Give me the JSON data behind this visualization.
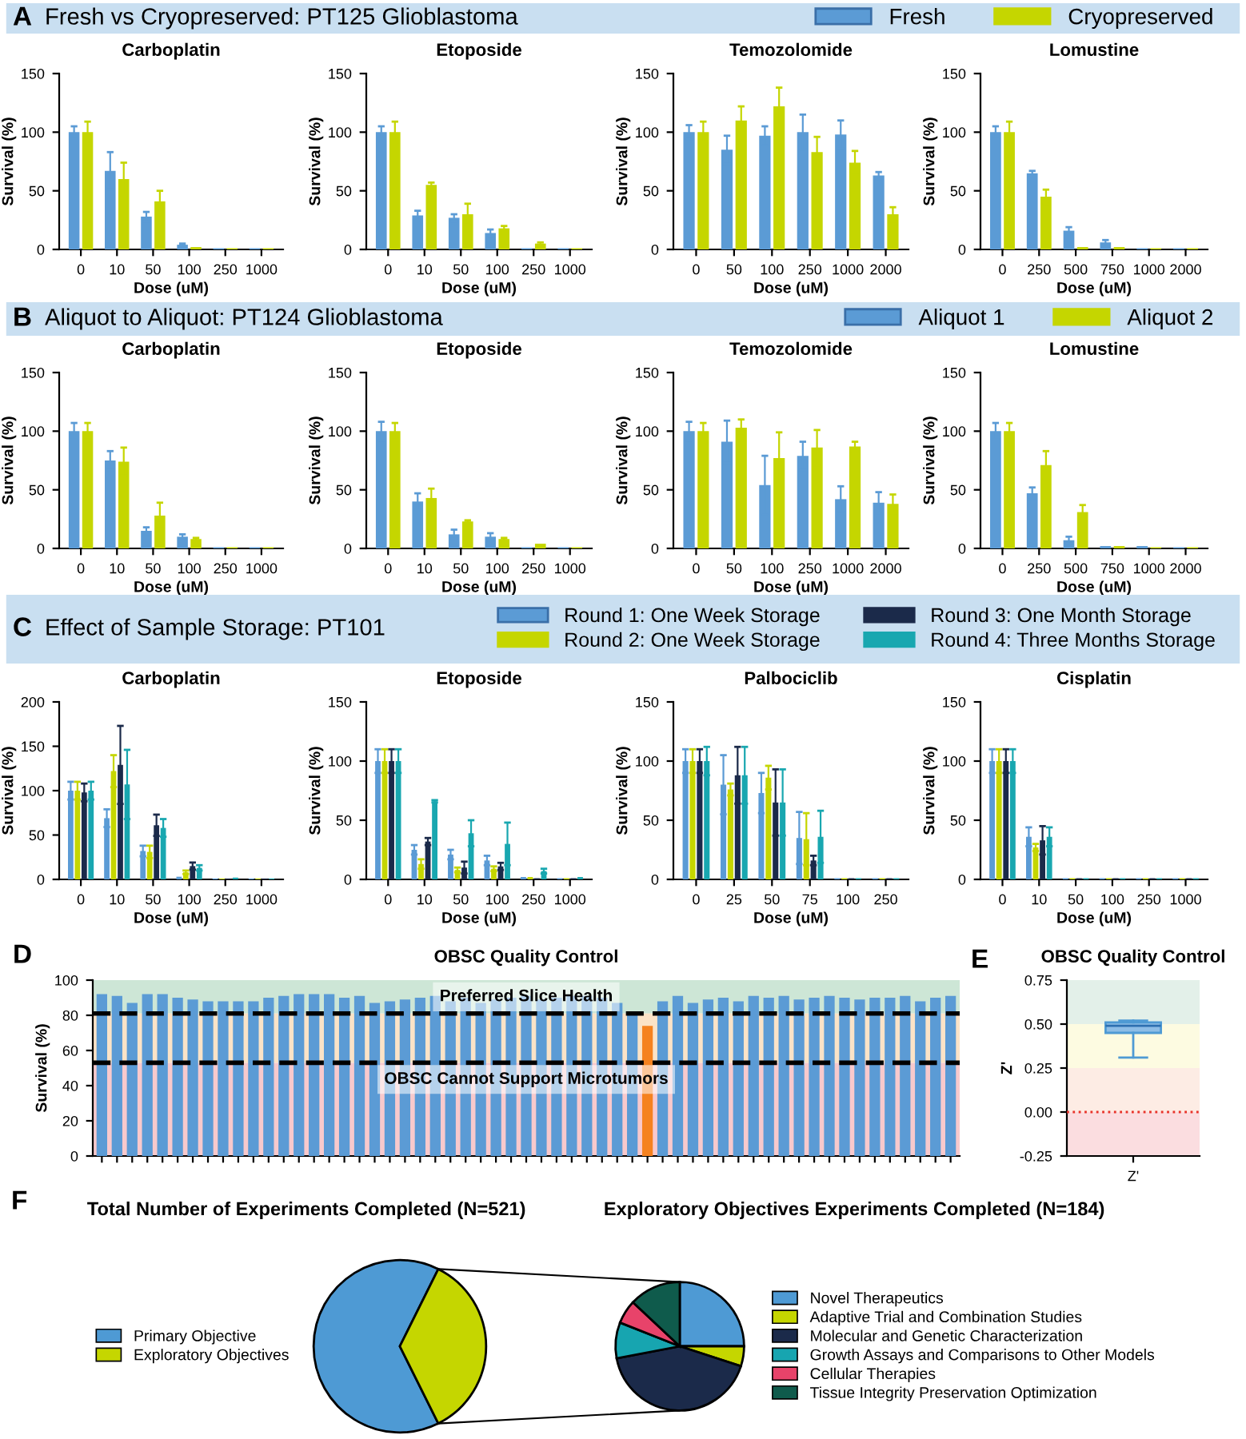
{
  "chart_data": [
    {
      "type": "bar",
      "subtitle": "Fresh vs Cryopreserved: PT125 Glioblastoma",
      "annotations": [
        "A"
      ],
      "legend": "top right",
      "title": "Carboplatin",
      "xlabel": "Dose (uM)",
      "ylabel": "Survival (%)",
      "categories": [
        "0",
        "10",
        "50",
        "100",
        "250",
        "1000"
      ],
      "ylim": [
        0,
        150
      ],
      "yticks": [
        0,
        50,
        100,
        150
      ],
      "series": [
        {
          "name": "Fresh",
          "color": "#5b9bd5",
          "values": [
            100,
            67,
            28,
            4,
            1,
            1
          ],
          "errors": [
            5,
            16,
            4,
            1,
            null,
            null
          ]
        },
        {
          "name": "Cryopreserved",
          "color": "#c5d600",
          "values": [
            100,
            60,
            41,
            2,
            1,
            1
          ],
          "errors": [
            9,
            14,
            9,
            null,
            null,
            null
          ]
        }
      ]
    },
    {
      "type": "bar",
      "title": "Etoposide",
      "xlabel": "Dose (uM)",
      "ylabel": "Survival (%)",
      "categories": [
        "0",
        "10",
        "50",
        "100",
        "250",
        "1000"
      ],
      "ylim": [
        0,
        150
      ],
      "yticks": [
        0,
        50,
        100,
        150
      ],
      "series": [
        {
          "color": "#5b9bd5",
          "values": [
            100,
            29,
            27,
            14,
            1,
            1
          ],
          "errors": [
            5,
            4,
            3,
            3,
            null,
            null
          ]
        },
        {
          "color": "#c5d600",
          "values": [
            100,
            55,
            30,
            18,
            5,
            1
          ],
          "errors": [
            9,
            2,
            9,
            2,
            1,
            null
          ]
        }
      ]
    },
    {
      "type": "bar",
      "title": "Temozolomide",
      "xlabel": "Dose (uM)",
      "ylabel": "Survival (%)",
      "categories": [
        "0",
        "50",
        "100",
        "250",
        "1000",
        "2000"
      ],
      "ylim": [
        0,
        150
      ],
      "yticks": [
        0,
        50,
        100,
        150
      ],
      "series": [
        {
          "color": "#5b9bd5",
          "values": [
            100,
            85,
            97,
            100,
            98,
            63
          ],
          "errors": [
            6,
            12,
            8,
            15,
            12,
            3
          ]
        },
        {
          "color": "#c5d600",
          "values": [
            100,
            110,
            122,
            83,
            74,
            30
          ],
          "errors": [
            9,
            12,
            16,
            13,
            10,
            6
          ]
        }
      ]
    },
    {
      "type": "bar",
      "title": "Lomustine",
      "xlabel": "Dose (uM)",
      "ylabel": "Survival (%)",
      "categories": [
        "0",
        "250",
        "500",
        "750",
        "1000",
        "2000"
      ],
      "ylim": [
        0,
        150
      ],
      "yticks": [
        0,
        50,
        100,
        150
      ],
      "series": [
        {
          "color": "#5b9bd5",
          "values": [
            100,
            65,
            16,
            6,
            1,
            1
          ],
          "errors": [
            5,
            2,
            3,
            2,
            null,
            null
          ]
        },
        {
          "color": "#c5d600",
          "values": [
            100,
            45,
            2,
            2,
            1,
            1
          ],
          "errors": [
            9,
            6,
            null,
            null,
            null,
            null
          ]
        }
      ]
    },
    {
      "type": "bar",
      "subtitle": "Aliquot to Aliquot: PT124 Glioblastoma",
      "annotations": [
        "B"
      ],
      "legend": "top right",
      "title": "Carboplatin",
      "xlabel": "Dose (uM)",
      "ylabel": "Survival (%)",
      "categories": [
        "0",
        "10",
        "50",
        "100",
        "250",
        "1000"
      ],
      "ylim": [
        0,
        150
      ],
      "yticks": [
        0,
        50,
        100,
        150
      ],
      "series": [
        {
          "name": "Aliquot 1",
          "color": "#5b9bd5",
          "values": [
            100,
            75,
            15,
            10,
            1,
            1
          ],
          "errors": [
            7,
            8,
            3,
            2,
            null,
            null
          ]
        },
        {
          "name": "Aliquot 2",
          "color": "#c5d600",
          "values": [
            100,
            74,
            28,
            8,
            1,
            1
          ],
          "errors": [
            7,
            12,
            11,
            1,
            null,
            null
          ]
        }
      ]
    },
    {
      "type": "bar",
      "title": "Etoposide",
      "xlabel": "Dose (uM)",
      "ylabel": "Survival (%)",
      "categories": [
        "0",
        "10",
        "50",
        "100",
        "250",
        "1000"
      ],
      "ylim": [
        0,
        150
      ],
      "yticks": [
        0,
        50,
        100,
        150
      ],
      "series": [
        {
          "color": "#5b9bd5",
          "values": [
            100,
            40,
            12,
            10,
            1,
            1
          ],
          "errors": [
            8,
            7,
            4,
            3,
            null,
            null
          ]
        },
        {
          "color": "#c5d600",
          "values": [
            100,
            43,
            23,
            8,
            4,
            1
          ],
          "errors": [
            7,
            8,
            1,
            1,
            null,
            null
          ]
        }
      ]
    },
    {
      "type": "bar",
      "title": "Temozolomide",
      "xlabel": "Dose (uM)",
      "ylabel": "Survival (%)",
      "categories": [
        "0",
        "50",
        "100",
        "250",
        "1000",
        "2000"
      ],
      "ylim": [
        0,
        150
      ],
      "yticks": [
        0,
        50,
        100,
        150
      ],
      "series": [
        {
          "color": "#5b9bd5",
          "values": [
            100,
            91,
            54,
            79,
            42,
            39
          ],
          "errors": [
            8,
            18,
            25,
            12,
            11,
            9
          ]
        },
        {
          "color": "#c5d600",
          "values": [
            100,
            103,
            77,
            86,
            87,
            38
          ],
          "errors": [
            7,
            7,
            22,
            15,
            4,
            8
          ]
        }
      ]
    },
    {
      "type": "bar",
      "title": "Lomustine",
      "xlabel": "Dose (uM)",
      "ylabel": "Survival (%)",
      "categories": [
        "0",
        "250",
        "500",
        "750",
        "1000",
        "2000"
      ],
      "ylim": [
        0,
        150
      ],
      "yticks": [
        0,
        50,
        100,
        150
      ],
      "series": [
        {
          "color": "#5b9bd5",
          "values": [
            100,
            47,
            7,
            2,
            2,
            1
          ],
          "errors": [
            7,
            5,
            3,
            null,
            null,
            null
          ]
        },
        {
          "color": "#c5d600",
          "values": [
            100,
            71,
            31,
            2,
            1,
            1
          ],
          "errors": [
            7,
            12,
            6,
            null,
            null,
            null
          ]
        }
      ]
    },
    {
      "type": "bar",
      "subtitle": "Effect of Sample Storage: PT101",
      "annotations": [
        "C"
      ],
      "legend": "top right",
      "title": "Carboplatin",
      "xlabel": "Dose (uM)",
      "ylabel": "Survival (%)",
      "categories": [
        "0",
        "10",
        "50",
        "100",
        "250",
        "1000"
      ],
      "ylim": [
        0,
        200
      ],
      "yticks": [
        0,
        50,
        100,
        150,
        200
      ],
      "series": [
        {
          "name": "Round 1: One Week Storage",
          "color": "#5b9bd5",
          "values": [
            100,
            69,
            32,
            3,
            1,
            1
          ],
          "errors": [
            10,
            10,
            6,
            null,
            null,
            null
          ]
        },
        {
          "name": "Round 2: One Week Storage",
          "color": "#c5d600",
          "values": [
            100,
            122,
            31,
            8,
            1,
            1
          ],
          "errors": [
            10,
            18,
            7,
            2,
            null,
            null
          ]
        },
        {
          "name": "Round 3: One Month Storage",
          "color": "#1b2a4a",
          "values": [
            98,
            129,
            61,
            15,
            1,
            1
          ],
          "errors": [
            10,
            44,
            12,
            4,
            null,
            null
          ]
        },
        {
          "name": "Round 4: Three Months Storage",
          "color": "#19a7b0",
          "values": [
            100,
            107,
            58,
            13,
            2,
            1
          ],
          "errors": [
            10,
            39,
            10,
            3,
            null,
            null
          ]
        }
      ]
    },
    {
      "type": "bar",
      "title": "Etoposide",
      "xlabel": "Dose (uM)",
      "ylabel": "Survival (%)",
      "categories": [
        "0",
        "10",
        "50",
        "100",
        "250",
        "1000"
      ],
      "ylim": [
        0,
        150
      ],
      "yticks": [
        0,
        50,
        100,
        150
      ],
      "series": [
        {
          "color": "#5b9bd5",
          "values": [
            100,
            25,
            21,
            16,
            2,
            1
          ],
          "errors": [
            10,
            4,
            4,
            4,
            null,
            null
          ]
        },
        {
          "color": "#c5d600",
          "values": [
            100,
            13,
            8,
            9,
            2,
            1
          ],
          "errors": [
            10,
            4,
            2,
            2,
            null,
            null
          ]
        },
        {
          "color": "#1b2a4a",
          "values": [
            100,
            32,
            10,
            11,
            1,
            1
          ],
          "errors": [
            10,
            3,
            5,
            3,
            null,
            null
          ]
        },
        {
          "color": "#19a7b0",
          "values": [
            100,
            66,
            39,
            30,
            7,
            2
          ],
          "errors": [
            10,
            1,
            11,
            18,
            2,
            null
          ]
        }
      ]
    },
    {
      "type": "bar",
      "title": "Palbociclib",
      "xlabel": "Dose (uM)",
      "ylabel": "Survival (%)",
      "categories": [
        "0",
        "25",
        "50",
        "75",
        "100",
        "250"
      ],
      "ylim": [
        0,
        150
      ],
      "yticks": [
        0,
        50,
        100,
        150
      ],
      "series": [
        {
          "color": "#5b9bd5",
          "values": [
            100,
            80,
            73,
            35,
            1,
            1
          ],
          "errors": [
            10,
            25,
            17,
            22,
            null,
            null
          ]
        },
        {
          "color": "#c5d600",
          "values": [
            100,
            76,
            86,
            34,
            1,
            1
          ],
          "errors": [
            10,
            5,
            10,
            22,
            null,
            null
          ]
        },
        {
          "color": "#1b2a4a",
          "values": [
            100,
            88,
            65,
            16,
            1,
            1
          ],
          "errors": [
            10,
            24,
            28,
            4,
            null,
            null
          ]
        },
        {
          "color": "#19a7b0",
          "values": [
            100,
            88,
            65,
            36,
            1,
            1
          ],
          "errors": [
            12,
            24,
            28,
            22,
            null,
            null
          ]
        }
      ]
    },
    {
      "type": "bar",
      "title": "Cisplatin",
      "xlabel": "Dose (uM)",
      "ylabel": "Survival (%)",
      "categories": [
        "0",
        "10",
        "50",
        "100",
        "250",
        "1000"
      ],
      "ylim": [
        0,
        150
      ],
      "yticks": [
        0,
        50,
        100,
        150
      ],
      "series": [
        {
          "color": "#5b9bd5",
          "values": [
            100,
            36,
            1,
            1,
            1,
            1
          ],
          "errors": [
            10,
            8,
            null,
            null,
            null,
            null
          ]
        },
        {
          "color": "#c5d600",
          "values": [
            100,
            27,
            1,
            1,
            1,
            1
          ],
          "errors": [
            10,
            3,
            null,
            null,
            null,
            null
          ]
        },
        {
          "color": "#1b2a4a",
          "values": [
            100,
            33,
            1,
            1,
            1,
            1
          ],
          "errors": [
            10,
            12,
            null,
            null,
            null,
            null
          ]
        },
        {
          "color": "#19a7b0",
          "values": [
            100,
            36,
            1,
            1,
            1,
            1
          ],
          "errors": [
            10,
            8,
            null,
            null,
            null,
            null
          ]
        }
      ]
    },
    {
      "type": "bar",
      "title": "OBSC Quality Control",
      "annotations": [
        "D"
      ],
      "ylabel": "Survival (%)",
      "categories": [
        null,
        null,
        null,
        null,
        null,
        null,
        null,
        null,
        null,
        null,
        null,
        null,
        null,
        null,
        null,
        null,
        null,
        null,
        null,
        null,
        null,
        null,
        null,
        null,
        null,
        null,
        null,
        null,
        null,
        null,
        null,
        null,
        null,
        null,
        null,
        null,
        null,
        null,
        null,
        null,
        null,
        null,
        null,
        null,
        null,
        null,
        null,
        null,
        null,
        null,
        null,
        null,
        null,
        null,
        null,
        null,
        null
      ],
      "ylim": [
        0,
        100
      ],
      "yticks": [
        0,
        20,
        40,
        60,
        80,
        100
      ],
      "values": [
        92,
        91,
        87,
        92,
        92,
        90,
        89,
        88,
        88,
        88,
        88,
        90,
        91,
        92,
        92,
        92,
        90,
        91,
        87,
        88,
        89,
        90,
        91,
        88,
        90,
        87,
        89,
        90,
        91,
        89,
        90,
        91,
        91,
        90,
        87,
        81,
        74,
        88,
        91,
        87,
        89,
        90,
        88,
        91,
        90,
        91,
        89,
        90,
        91,
        90,
        89,
        90,
        90,
        91,
        88,
        90,
        91
      ],
      "colors": [
        "#5b9bd5",
        "#5b9bd5",
        "#5b9bd5",
        "#5b9bd5",
        "#5b9bd5",
        "#5b9bd5",
        "#5b9bd5",
        "#5b9bd5",
        "#5b9bd5",
        "#5b9bd5",
        "#5b9bd5",
        "#5b9bd5",
        "#5b9bd5",
        "#5b9bd5",
        "#5b9bd5",
        "#5b9bd5",
        "#5b9bd5",
        "#5b9bd5",
        "#5b9bd5",
        "#5b9bd5",
        "#5b9bd5",
        "#5b9bd5",
        "#5b9bd5",
        "#5b9bd5",
        "#5b9bd5",
        "#5b9bd5",
        "#5b9bd5",
        "#5b9bd5",
        "#5b9bd5",
        "#5b9bd5",
        "#5b9bd5",
        "#5b9bd5",
        "#5b9bd5",
        "#5b9bd5",
        "#5b9bd5",
        "#5b9bd5",
        "#f5821f",
        "#5b9bd5",
        "#5b9bd5",
        "#5b9bd5",
        "#5b9bd5",
        "#5b9bd5",
        "#5b9bd5",
        "#5b9bd5",
        "#5b9bd5",
        "#5b9bd5",
        "#5b9bd5",
        "#5b9bd5",
        "#5b9bd5",
        "#5b9bd5",
        "#5b9bd5",
        "#5b9bd5",
        "#5b9bd5",
        "#5b9bd5",
        "#5b9bd5",
        "#5b9bd5",
        "#5b9bd5"
      ],
      "bands": [
        {
          "axis": "y",
          "from": 81,
          "to": 100,
          "label": "Preferred Slice Health",
          "color": "#cde6d6"
        },
        {
          "axis": "y",
          "from": 53,
          "to": 81,
          "color": "#fbe3c7"
        },
        {
          "axis": "y",
          "from": 0,
          "to": 53,
          "label": "OBSC Cannot Support Microtumors",
          "color": "#f8c9cc"
        }
      ],
      "ref_lines": [
        {
          "axis": "y",
          "value": 81,
          "color": "#000000",
          "line_style": "dashed"
        },
        {
          "axis": "y",
          "value": 53,
          "color": "#000000",
          "line_style": "dashed"
        }
      ]
    },
    {
      "type": "box",
      "title": "OBSC Quality Control",
      "annotations": [
        "E"
      ],
      "ylabel": "Z'",
      "categories": [
        "Z'"
      ],
      "ylim": [
        -0.25,
        0.75
      ],
      "yticks": [
        -0.25,
        {
          "value": 0,
          "label": "0.00"
        },
        0.25,
        {
          "value": 0.5,
          "label": "0.50"
        },
        0.75
      ],
      "boxes": [
        {
          "low": 0.31,
          "q1": 0.45,
          "median": 0.49,
          "q3": 0.51,
          "high": 0.52
        }
      ],
      "bands": [
        {
          "axis": "y",
          "from": 0.5,
          "to": 0.75,
          "color": "#e3f0e9"
        },
        {
          "axis": "y",
          "from": 0.25,
          "to": 0.5,
          "color": "#fdfbe1"
        },
        {
          "axis": "y",
          "from": 0,
          "to": 0.25,
          "color": "#fdece4"
        },
        {
          "axis": "y",
          "from": -0.25,
          "to": 0,
          "color": "#fbdde0"
        }
      ],
      "ref_lines": [
        {
          "axis": "y",
          "value": 0,
          "color": "#e8332a",
          "line_style": "dotted"
        }
      ]
    },
    {
      "type": "pie",
      "title": "Total Number of Experiments Completed (N=521)",
      "annotations": [
        "F"
      ],
      "legend": "left",
      "categories": [
        "Primary Objective",
        "Exploratory Objectives"
      ],
      "values": [
        64.7,
        35.3
      ],
      "colors": [
        "#4e9ad4",
        "#c5d600"
      ]
    },
    {
      "type": "pie",
      "title": "Exploratory Objectives Experiments Completed (N=184)",
      "legend": "right",
      "categories": [
        "Novel Therapeutics",
        "Adaptive Trial and Combination Studies",
        "Molecular and Genetic Characterization",
        "Growth Assays and Comparisons to Other Models",
        "Cellular Therapies",
        "Tissue Integrity Preservation Optimization"
      ],
      "values": [
        25,
        5,
        42,
        9,
        6,
        13
      ],
      "colors": [
        "#4e9ad4",
        "#c5d600",
        "#1b2a4a",
        "#17a5b0",
        "#e8436a",
        "#0f5b4c"
      ]
    }
  ]
}
